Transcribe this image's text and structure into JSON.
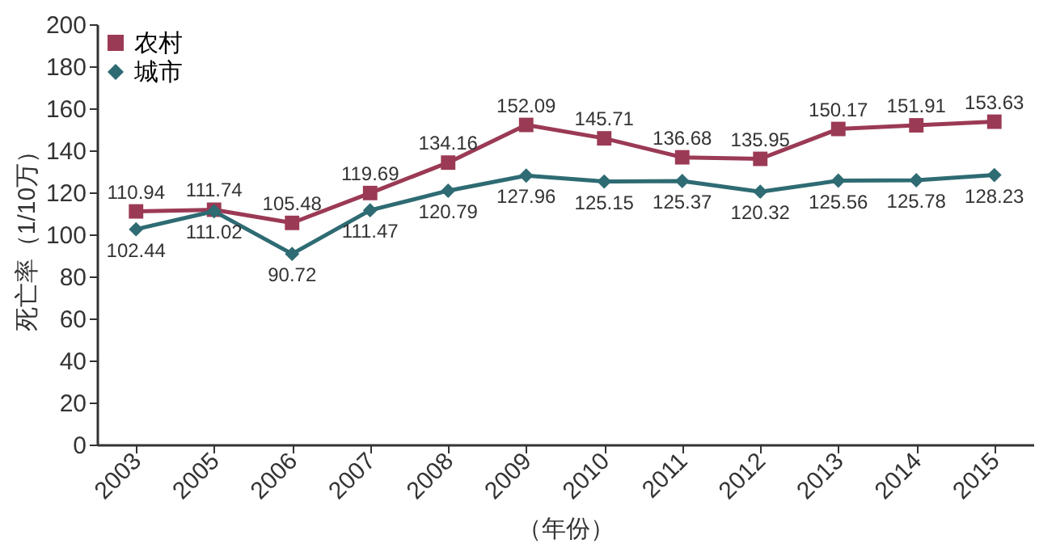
{
  "chart_data": {
    "type": "line",
    "xlabel": "（年份）",
    "ylabel": "死亡率（1/10万）",
    "categories": [
      "2003",
      "2005",
      "2006",
      "2007",
      "2008",
      "2009",
      "2010",
      "2011",
      "2012",
      "2013",
      "2014",
      "2015"
    ],
    "series": [
      {
        "name": "农村",
        "color": "#9b3a55",
        "marker": "square",
        "values": [
          110.94,
          111.74,
          105.48,
          119.69,
          134.16,
          152.09,
          145.71,
          136.68,
          135.95,
          150.17,
          151.91,
          153.63
        ]
      },
      {
        "name": "城市",
        "color": "#2e6b73",
        "marker": "diamond",
        "values": [
          102.44,
          111.02,
          90.72,
          111.47,
          120.79,
          127.96,
          125.15,
          125.37,
          120.32,
          125.56,
          125.78,
          128.23
        ]
      }
    ],
    "ylim": [
      0,
      200
    ],
    "yticks": [
      0,
      20,
      40,
      60,
      80,
      100,
      120,
      140,
      160,
      180,
      200
    ],
    "legend": "top left",
    "data_labels": true,
    "grid": false
  }
}
